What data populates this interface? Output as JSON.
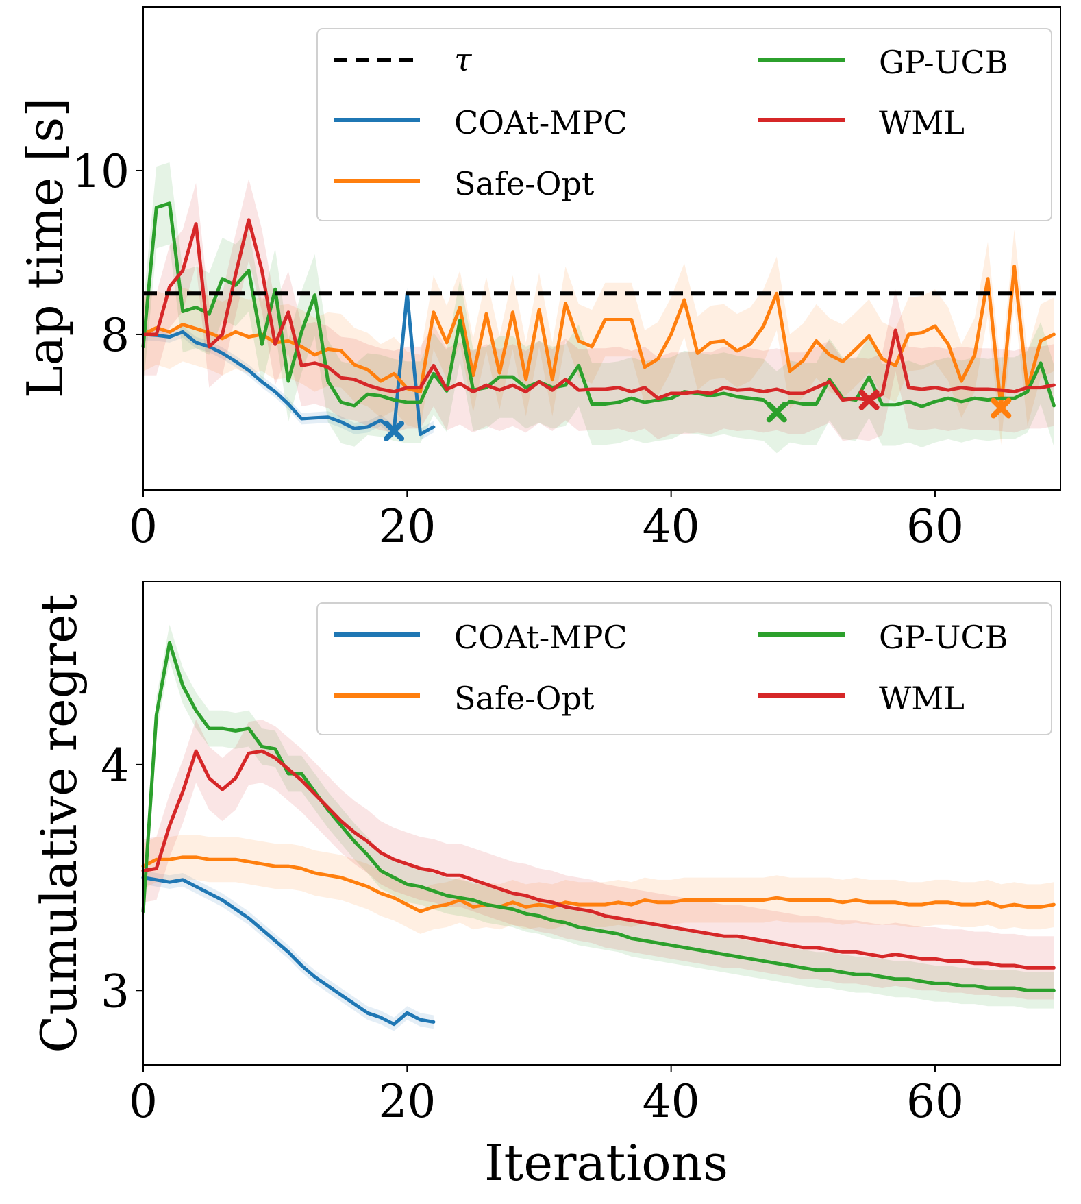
{
  "chart_data": [
    {
      "type": "line",
      "ylabel": "Lap time [s]",
      "xlabel": "",
      "xlim": [
        0,
        69.5
      ],
      "ylim": [
        6.1,
        12.0
      ],
      "xticks": [
        0,
        20,
        40,
        60
      ],
      "yticks": [
        8,
        10
      ],
      "x_tick_labels": [
        "0",
        "20",
        "40",
        "60"
      ],
      "y_tick_labels": [
        "8",
        "10"
      ],
      "legend_position": "top-right",
      "legend": [
        {
          "label": "τ",
          "color": "#000000",
          "dashed": true
        },
        {
          "label": "COAt-MPC",
          "color": "#1f77b4"
        },
        {
          "label": "Safe-Opt",
          "color": "#ff7f0e"
        },
        {
          "label": "GP-UCB",
          "color": "#2ca02c"
        },
        {
          "label": "WML",
          "color": "#d62728"
        }
      ],
      "threshold": {
        "name": "τ",
        "value": 8.5
      },
      "series": [
        {
          "name": "COAt-MPC",
          "color": "#1f77b4",
          "x": [
            0,
            1,
            2,
            3,
            4,
            5,
            6,
            7,
            8,
            9,
            10,
            11,
            12,
            13,
            14,
            15,
            16,
            17,
            18,
            19,
            20,
            21,
            22
          ],
          "values": [
            8.0,
            7.99,
            7.97,
            8.03,
            7.9,
            7.85,
            7.77,
            7.67,
            7.56,
            7.42,
            7.3,
            7.15,
            6.97,
            6.98,
            6.99,
            6.93,
            6.85,
            6.87,
            6.95,
            6.82,
            8.5,
            6.78,
            6.87
          ],
          "band": 0.07,
          "marker": {
            "x": 19,
            "y": 6.82
          }
        },
        {
          "name": "Safe-Opt",
          "color": "#ff7f0e",
          "x": [
            0,
            1,
            2,
            3,
            4,
            5,
            6,
            7,
            8,
            9,
            10,
            11,
            12,
            13,
            14,
            15,
            16,
            17,
            18,
            19,
            20,
            21,
            22,
            23,
            24,
            25,
            26,
            27,
            28,
            29,
            30,
            31,
            32,
            33,
            34,
            35,
            36,
            37,
            38,
            39,
            40,
            41,
            42,
            43,
            44,
            45,
            46,
            47,
            48,
            49,
            50,
            51,
            52,
            53,
            54,
            55,
            56,
            57,
            58,
            59,
            60,
            61,
            62,
            63,
            64,
            65,
            66,
            67,
            68,
            69
          ],
          "values": [
            8.0,
            8.08,
            8.03,
            8.12,
            8.07,
            8.02,
            7.95,
            8.03,
            7.97,
            8.0,
            7.9,
            7.92,
            7.85,
            7.75,
            7.82,
            7.8,
            7.63,
            7.57,
            7.43,
            7.52,
            7.34,
            7.3,
            8.27,
            7.9,
            8.33,
            7.5,
            8.25,
            7.53,
            8.27,
            7.45,
            8.3,
            7.45,
            8.38,
            7.92,
            7.85,
            8.18,
            8.18,
            8.18,
            7.6,
            7.7,
            8.0,
            8.42,
            7.77,
            7.9,
            7.92,
            7.8,
            7.88,
            8.1,
            8.5,
            7.55,
            7.68,
            7.92,
            7.75,
            7.67,
            7.82,
            7.98,
            7.7,
            7.62,
            8.0,
            8.02,
            8.1,
            7.88,
            7.43,
            7.75,
            8.68,
            7.1,
            8.83,
            7.33,
            7.92,
            8.0
          ],
          "band": 0.45,
          "marker": {
            "x": 65,
            "y": 7.1
          }
        },
        {
          "name": "GP-UCB",
          "color": "#2ca02c",
          "x": [
            0,
            1,
            2,
            3,
            4,
            5,
            6,
            7,
            8,
            9,
            10,
            11,
            12,
            13,
            14,
            15,
            16,
            17,
            18,
            19,
            20,
            21,
            22,
            23,
            24,
            25,
            26,
            27,
            28,
            29,
            30,
            31,
            32,
            33,
            34,
            35,
            36,
            37,
            38,
            39,
            40,
            41,
            42,
            43,
            44,
            45,
            46,
            47,
            48,
            49,
            50,
            51,
            52,
            53,
            54,
            55,
            56,
            57,
            58,
            59,
            60,
            61,
            62,
            63,
            64,
            65,
            66,
            67,
            68,
            69
          ],
          "values": [
            7.85,
            9.55,
            9.6,
            8.28,
            8.33,
            8.25,
            8.68,
            8.6,
            8.78,
            7.88,
            8.55,
            7.43,
            8.03,
            8.48,
            7.43,
            7.17,
            7.13,
            7.27,
            7.25,
            7.2,
            7.17,
            7.17,
            7.52,
            7.31,
            8.17,
            7.32,
            7.35,
            7.48,
            7.48,
            7.35,
            7.42,
            7.35,
            7.38,
            7.62,
            7.15,
            7.15,
            7.17,
            7.22,
            7.17,
            7.2,
            7.22,
            7.3,
            7.28,
            7.25,
            7.28,
            7.24,
            7.22,
            7.2,
            7.05,
            7.18,
            7.15,
            7.15,
            7.45,
            7.22,
            7.2,
            7.48,
            7.14,
            7.14,
            7.18,
            7.12,
            7.18,
            7.22,
            7.18,
            7.22,
            7.2,
            7.22,
            7.22,
            7.3,
            7.65,
            7.13
          ],
          "band": 0.5,
          "marker": {
            "x": 48,
            "y": 7.05
          }
        },
        {
          "name": "WML",
          "color": "#d62728",
          "x": [
            0,
            1,
            2,
            3,
            4,
            5,
            6,
            7,
            8,
            9,
            10,
            11,
            12,
            13,
            14,
            15,
            16,
            17,
            18,
            19,
            20,
            21,
            22,
            23,
            24,
            25,
            26,
            27,
            28,
            29,
            30,
            31,
            32,
            33,
            34,
            35,
            36,
            37,
            38,
            39,
            40,
            41,
            42,
            43,
            44,
            45,
            46,
            47,
            48,
            49,
            50,
            51,
            52,
            53,
            54,
            55,
            56,
            57,
            58,
            59,
            60,
            61,
            62,
            63,
            64,
            65,
            66,
            67,
            68,
            69
          ],
          "values": [
            8.0,
            8.0,
            8.58,
            8.78,
            9.35,
            7.85,
            8.0,
            8.73,
            9.4,
            8.78,
            7.88,
            8.27,
            7.62,
            7.65,
            7.6,
            7.47,
            7.45,
            7.38,
            7.33,
            7.3,
            7.35,
            7.35,
            7.62,
            7.33,
            7.4,
            7.3,
            7.38,
            7.32,
            7.38,
            7.3,
            7.42,
            7.32,
            7.45,
            7.32,
            7.33,
            7.33,
            7.35,
            7.3,
            7.35,
            7.22,
            7.28,
            7.28,
            7.3,
            7.28,
            7.35,
            7.32,
            7.33,
            7.3,
            7.33,
            7.28,
            7.28,
            7.35,
            7.42,
            7.2,
            7.22,
            7.2,
            7.27,
            8.05,
            7.35,
            7.33,
            7.35,
            7.32,
            7.35,
            7.33,
            7.33,
            7.32,
            7.3,
            7.35,
            7.35,
            7.38
          ],
          "band": 0.5,
          "marker": {
            "x": 55,
            "y": 7.2
          }
        }
      ]
    },
    {
      "type": "line",
      "ylabel": "Cumulative regret",
      "xlabel": "Iterations",
      "xlim": [
        0,
        69.5
      ],
      "ylim": [
        2.67,
        4.81
      ],
      "xticks": [
        0,
        20,
        40,
        60
      ],
      "yticks": [
        3,
        4
      ],
      "x_tick_labels": [
        "0",
        "20",
        "40",
        "60"
      ],
      "y_tick_labels": [
        "3",
        "4"
      ],
      "legend_position": "top-right",
      "legend": [
        {
          "label": "COAt-MPC",
          "color": "#1f77b4"
        },
        {
          "label": "Safe-Opt",
          "color": "#ff7f0e"
        },
        {
          "label": "GP-UCB",
          "color": "#2ca02c"
        },
        {
          "label": "WML",
          "color": "#d62728"
        }
      ],
      "series": [
        {
          "name": "COAt-MPC",
          "color": "#1f77b4",
          "x": [
            0,
            1,
            2,
            3,
            4,
            5,
            6,
            7,
            8,
            9,
            10,
            11,
            12,
            13,
            14,
            15,
            16,
            17,
            18,
            19,
            20,
            21,
            22
          ],
          "values": [
            3.5,
            3.49,
            3.48,
            3.49,
            3.46,
            3.43,
            3.4,
            3.36,
            3.32,
            3.27,
            3.22,
            3.17,
            3.11,
            3.06,
            3.02,
            2.98,
            2.94,
            2.9,
            2.88,
            2.85,
            2.9,
            2.87,
            2.86
          ],
          "band": 0.03
        },
        {
          "name": "Safe-Opt",
          "color": "#ff7f0e",
          "x": [
            0,
            1,
            2,
            3,
            4,
            5,
            6,
            7,
            8,
            9,
            10,
            11,
            12,
            13,
            14,
            15,
            16,
            17,
            18,
            19,
            20,
            21,
            22,
            23,
            24,
            25,
            26,
            27,
            28,
            29,
            30,
            31,
            32,
            33,
            34,
            35,
            36,
            37,
            38,
            39,
            40,
            41,
            42,
            43,
            44,
            45,
            46,
            47,
            48,
            49,
            50,
            51,
            52,
            53,
            54,
            55,
            56,
            57,
            58,
            59,
            60,
            61,
            62,
            63,
            64,
            65,
            66,
            67,
            68,
            69
          ],
          "values": [
            3.55,
            3.58,
            3.58,
            3.59,
            3.59,
            3.58,
            3.58,
            3.58,
            3.57,
            3.56,
            3.55,
            3.55,
            3.54,
            3.52,
            3.51,
            3.5,
            3.48,
            3.46,
            3.43,
            3.41,
            3.38,
            3.35,
            3.37,
            3.38,
            3.4,
            3.37,
            3.38,
            3.37,
            3.39,
            3.37,
            3.38,
            3.37,
            3.39,
            3.38,
            3.38,
            3.38,
            3.39,
            3.38,
            3.4,
            3.39,
            3.39,
            3.4,
            3.4,
            3.4,
            3.4,
            3.4,
            3.4,
            3.4,
            3.41,
            3.4,
            3.4,
            3.4,
            3.4,
            3.39,
            3.4,
            3.39,
            3.39,
            3.39,
            3.38,
            3.38,
            3.39,
            3.39,
            3.38,
            3.38,
            3.39,
            3.37,
            3.38,
            3.37,
            3.37,
            3.38
          ],
          "band": 0.1
        },
        {
          "name": "GP-UCB",
          "color": "#2ca02c",
          "x": [
            0,
            1,
            2,
            3,
            4,
            5,
            6,
            7,
            8,
            9,
            10,
            11,
            12,
            13,
            14,
            15,
            16,
            17,
            18,
            19,
            20,
            21,
            22,
            23,
            24,
            25,
            26,
            27,
            28,
            29,
            30,
            31,
            32,
            33,
            34,
            35,
            36,
            37,
            38,
            39,
            40,
            41,
            42,
            43,
            44,
            45,
            46,
            47,
            48,
            49,
            50,
            51,
            52,
            53,
            54,
            55,
            56,
            57,
            58,
            59,
            60,
            61,
            62,
            63,
            64,
            65,
            66,
            67,
            68,
            69
          ],
          "values": [
            3.35,
            4.22,
            4.54,
            4.35,
            4.24,
            4.16,
            4.16,
            4.15,
            4.16,
            4.08,
            4.07,
            3.96,
            3.96,
            3.88,
            3.8,
            3.73,
            3.66,
            3.6,
            3.53,
            3.5,
            3.47,
            3.46,
            3.44,
            3.42,
            3.41,
            3.4,
            3.38,
            3.37,
            3.36,
            3.34,
            3.33,
            3.31,
            3.3,
            3.28,
            3.27,
            3.26,
            3.25,
            3.23,
            3.22,
            3.21,
            3.2,
            3.19,
            3.18,
            3.17,
            3.16,
            3.15,
            3.14,
            3.13,
            3.12,
            3.11,
            3.1,
            3.09,
            3.09,
            3.08,
            3.07,
            3.07,
            3.06,
            3.05,
            3.05,
            3.04,
            3.03,
            3.03,
            3.02,
            3.02,
            3.01,
            3.01,
            3.01,
            3.0,
            3.0,
            3.0
          ],
          "band": 0.08
        },
        {
          "name": "WML",
          "color": "#d62728",
          "x": [
            0,
            1,
            2,
            3,
            4,
            5,
            6,
            7,
            8,
            9,
            10,
            11,
            12,
            13,
            14,
            15,
            16,
            17,
            18,
            19,
            20,
            21,
            22,
            23,
            24,
            25,
            26,
            27,
            28,
            29,
            30,
            31,
            32,
            33,
            34,
            35,
            36,
            37,
            38,
            39,
            40,
            41,
            42,
            43,
            44,
            45,
            46,
            47,
            48,
            49,
            50,
            51,
            52,
            53,
            54,
            55,
            56,
            57,
            58,
            59,
            60,
            61,
            62,
            63,
            64,
            65,
            66,
            67,
            68,
            69
          ],
          "values": [
            3.53,
            3.54,
            3.73,
            3.88,
            4.06,
            3.94,
            3.89,
            3.94,
            4.05,
            4.06,
            4.03,
            3.98,
            3.93,
            3.87,
            3.81,
            3.75,
            3.7,
            3.66,
            3.61,
            3.58,
            3.56,
            3.54,
            3.53,
            3.51,
            3.51,
            3.49,
            3.47,
            3.45,
            3.43,
            3.42,
            3.4,
            3.39,
            3.37,
            3.36,
            3.35,
            3.33,
            3.32,
            3.31,
            3.3,
            3.29,
            3.28,
            3.27,
            3.26,
            3.25,
            3.24,
            3.24,
            3.23,
            3.22,
            3.21,
            3.2,
            3.19,
            3.19,
            3.18,
            3.17,
            3.17,
            3.16,
            3.15,
            3.16,
            3.15,
            3.14,
            3.14,
            3.13,
            3.13,
            3.12,
            3.12,
            3.11,
            3.11,
            3.1,
            3.1,
            3.1
          ],
          "band": 0.14
        }
      ]
    }
  ]
}
